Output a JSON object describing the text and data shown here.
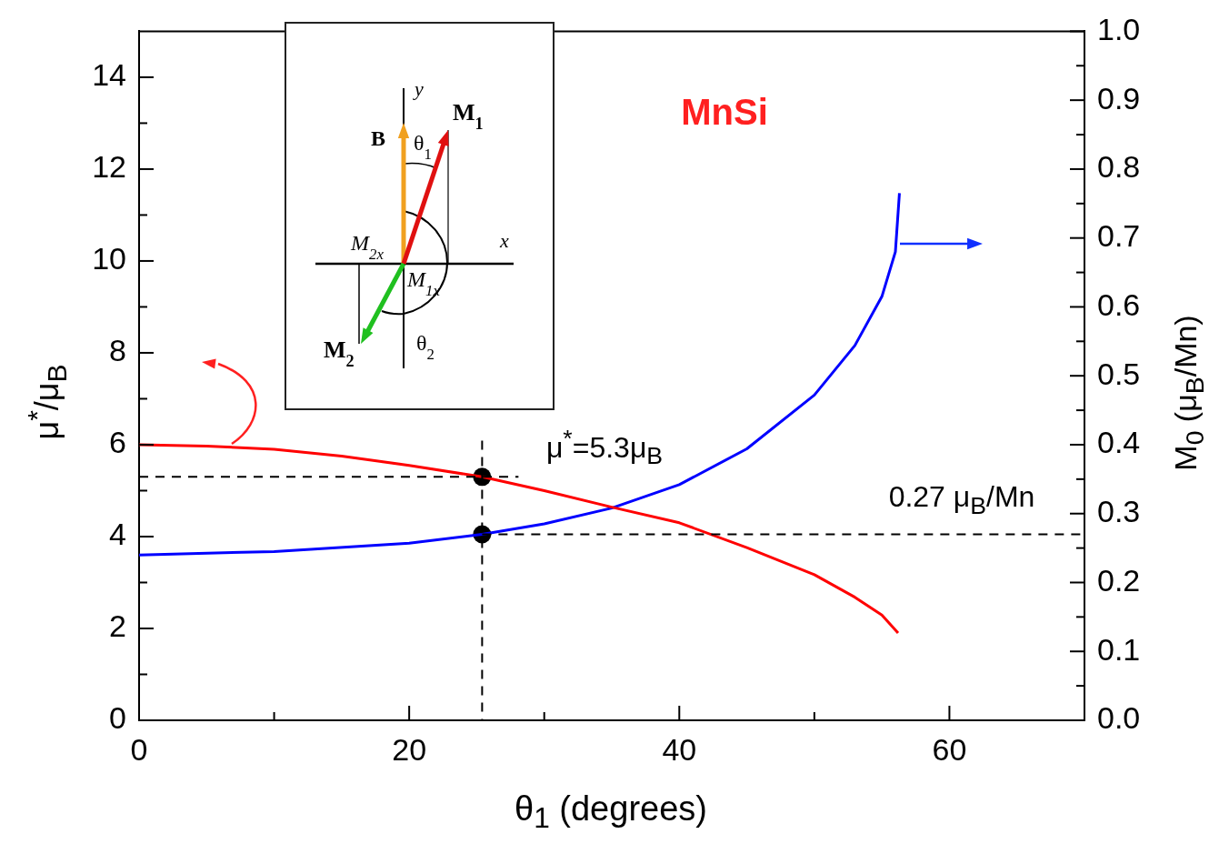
{
  "chart_data": {
    "type": "line",
    "xlabel": "θ$_{1}$ (degrees)",
    "ylabel": "μ$^{*}$/μ$_{B}$",
    "y2label": "M$_{0}$ (μ$_{B}$/Mn)",
    "xlim": [
      0,
      70
    ],
    "xticks": [
      0,
      {
        "value": 10,
        "label": null
      },
      20,
      {
        "value": 30,
        "label": null
      },
      40,
      {
        "value": 50,
        "label": null
      },
      60,
      {
        "value": 70,
        "label": null
      }
    ],
    "ylim": [
      0,
      15
    ],
    "yticks": [
      0,
      {
        "value": 1,
        "label": null
      },
      2,
      {
        "value": 3,
        "label": null
      },
      4,
      {
        "value": 5,
        "label": null
      },
      6,
      {
        "value": 7,
        "label": null
      },
      8,
      {
        "value": 9,
        "label": null
      },
      10,
      {
        "value": 11,
        "label": null
      },
      12,
      {
        "value": 13,
        "label": null
      },
      14
    ],
    "y2lim": [
      0,
      1
    ],
    "y2ticks": [
      {
        "value": 0,
        "label": "0.0"
      },
      {
        "value": 0.05,
        "label": null
      },
      0.1,
      {
        "value": 0.15,
        "label": null
      },
      0.2,
      {
        "value": 0.25,
        "label": null
      },
      0.3,
      {
        "value": 0.35,
        "label": null
      },
      0.4,
      {
        "value": 0.45,
        "label": null
      },
      0.5,
      {
        "value": 0.55,
        "label": null
      },
      0.6,
      {
        "value": 0.65,
        "label": null
      },
      0.7,
      {
        "value": 0.75,
        "label": null
      },
      0.8,
      {
        "value": 0.85,
        "label": null
      },
      0.9,
      {
        "value": 0.95,
        "label": null
      },
      {
        "value": 1,
        "label": "1.0"
      }
    ],
    "grid": false,
    "legend": false,
    "line_style": "solid",
    "marker": "none",
    "series": [
      {
        "type": "line",
        "color": "#ff0000",
        "x": [
          0,
          5,
          10,
          15,
          20,
          25.4,
          30,
          35,
          40,
          45,
          50,
          53,
          55,
          56.2
        ],
        "values": [
          6.0,
          5.97,
          5.9,
          5.75,
          5.55,
          5.3,
          5.0,
          4.64,
          4.3,
          3.76,
          3.17,
          2.68,
          2.29,
          1.9
        ]
      },
      {
        "type": "line",
        "color": "#0000ff",
        "axis": "y2",
        "x": [
          0,
          10,
          20,
          25.4,
          30,
          35,
          40,
          45,
          50,
          53,
          55,
          56,
          56.3
        ],
        "values": [
          0.24,
          0.245,
          0.257,
          0.27,
          0.285,
          0.308,
          0.342,
          0.394,
          0.472,
          0.544,
          0.615,
          0.68,
          0.765
        ]
      },
      {
        "type": "scatter",
        "color": "#000000",
        "marker": "circle",
        "x": [
          25.4
        ],
        "values": [
          5.3
        ]
      },
      {
        "type": "scatter",
        "color": "#000000",
        "marker": "circle",
        "axis": "y2",
        "x": [
          25.4
        ],
        "values": [
          0.27
        ]
      }
    ],
    "ref_lines": [
      {
        "axis": "x",
        "value": 25.4,
        "color": "#000000",
        "line_style": "dashed"
      },
      {
        "axis": "y",
        "value": 5.3,
        "color": "#000000",
        "line_style": "dashed"
      },
      {
        "axis": "y2",
        "value": 0.27,
        "color": "#000000",
        "line_style": "dashed"
      }
    ],
    "annotations": [
      "MnSi",
      "μ$^{*}$=5.3μ$_{B}$",
      "0.27 μ$_{B}$/Mn",
      "y",
      "B",
      "θ$_{1}$",
      "M$_{1}$",
      "x",
      "M$_{2x}$",
      "M$_{1x}$",
      "M$_{2}$",
      "θ$_{2}$"
    ]
  }
}
